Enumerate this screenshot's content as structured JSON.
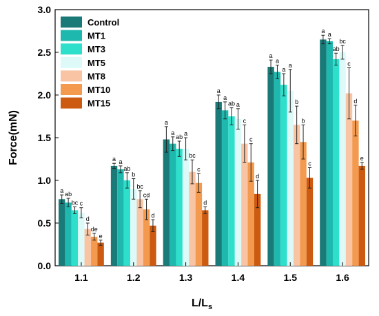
{
  "chart_data": {
    "type": "bar",
    "xlabel_main": "L/L",
    "xlabel_sub": "s",
    "ylabel": "Force(mN)",
    "ylim": [
      0,
      3.0
    ],
    "yticks": [
      "0.0",
      "0.5",
      "1.0",
      "1.5",
      "2.0",
      "2.5",
      "3.0"
    ],
    "categories": [
      "1.1",
      "1.2",
      "1.3",
      "1.4",
      "1.5",
      "1.6"
    ],
    "legend_position": "top-left",
    "series": [
      {
        "name": "Control",
        "color": "#1a7a78",
        "values": [
          0.78,
          1.17,
          1.48,
          1.92,
          2.33,
          2.65
        ],
        "errors": [
          0.05,
          0.03,
          0.15,
          0.08,
          0.08,
          0.05
        ],
        "letters": [
          "a",
          "a",
          "a",
          "a",
          "a",
          "a"
        ]
      },
      {
        "name": "MT1",
        "color": "#1fb8ae",
        "values": [
          0.74,
          1.13,
          1.43,
          1.82,
          2.27,
          2.63
        ],
        "errors": [
          0.05,
          0.04,
          0.08,
          0.1,
          0.08,
          0.03
        ],
        "letters": [
          "ab",
          "a",
          "a",
          "a",
          "a",
          "a"
        ]
      },
      {
        "name": "MT3",
        "color": "#2ee0cc",
        "values": [
          0.65,
          1.0,
          1.37,
          1.75,
          2.12,
          2.42
        ],
        "errors": [
          0.04,
          0.09,
          0.09,
          0.1,
          0.13,
          0.07
        ],
        "letters": [
          "bc",
          "ab",
          "ab",
          "ab",
          "a",
          "ab"
        ]
      },
      {
        "name": "MT5",
        "color": "#ddfaf8",
        "values": [
          0.62,
          0.9,
          1.37,
          1.72,
          2.05,
          2.5
        ],
        "errors": [
          0.06,
          0.12,
          0.13,
          0.12,
          0.25,
          0.08
        ],
        "letters": [
          "c",
          "b",
          "a",
          "a",
          "a",
          "bc"
        ]
      },
      {
        "name": "MT8",
        "color": "#f8c4a4",
        "values": [
          0.43,
          0.78,
          1.1,
          1.43,
          1.65,
          2.02
        ],
        "errors": [
          0.07,
          0.1,
          0.14,
          0.22,
          0.22,
          0.3
        ],
        "letters": [
          "d",
          "bc",
          "bc",
          "c",
          "b",
          "c"
        ]
      },
      {
        "name": "MT10",
        "color": "#f39a4f",
        "values": [
          0.34,
          0.66,
          0.97,
          1.21,
          1.45,
          1.7
        ],
        "errors": [
          0.04,
          0.12,
          0.11,
          0.22,
          0.2,
          0.18
        ],
        "letters": [
          "de",
          "cd",
          "c",
          "c",
          "b",
          "d"
        ]
      },
      {
        "name": "MT15",
        "color": "#cc5a10",
        "values": [
          0.27,
          0.47,
          0.65,
          0.84,
          1.03,
          1.17
        ],
        "errors": [
          0.03,
          0.07,
          0.04,
          0.16,
          0.12,
          0.04
        ],
        "letters": [
          "e",
          "d",
          "d",
          "d",
          "c",
          "e"
        ]
      }
    ]
  }
}
